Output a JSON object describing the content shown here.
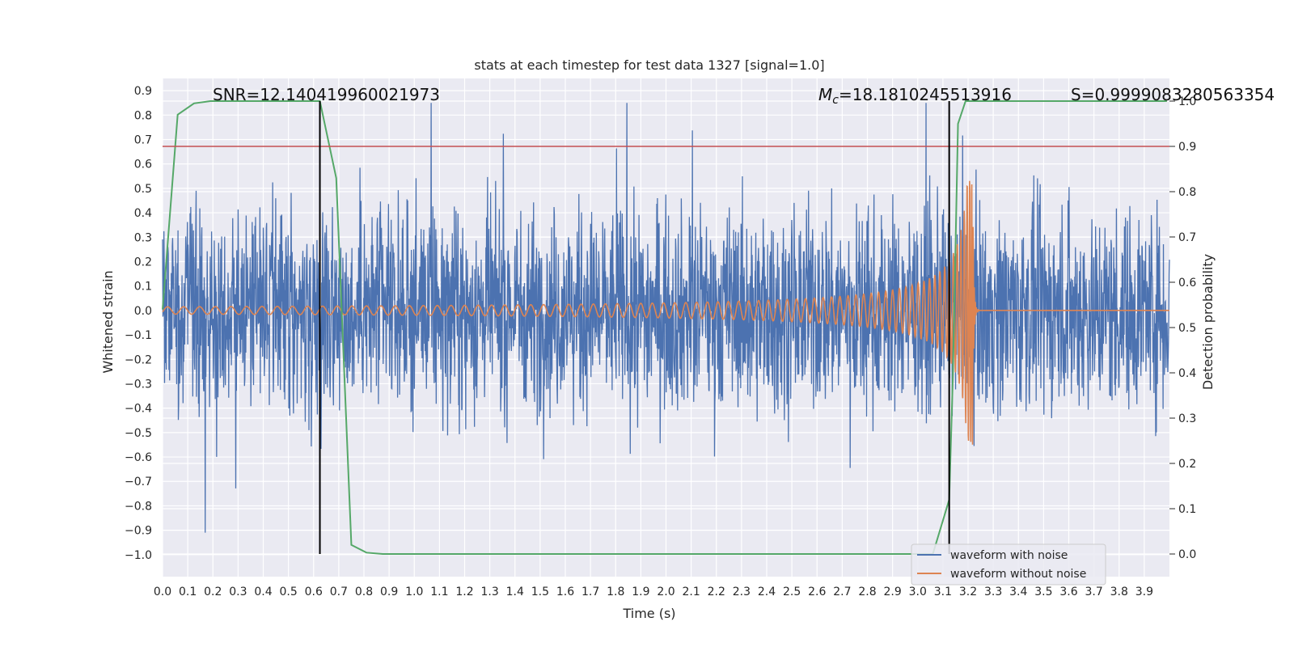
{
  "chart_data": {
    "type": "line",
    "title": "stats at each timestep for test data 1327 [signal=1.0]",
    "xlabel": "Time (s)",
    "ylabel": "Whitened strain",
    "y2label": "Detection probability",
    "xlim": [
      0.0,
      4.0
    ],
    "ylim": [
      -1.09,
      0.95
    ],
    "y2lim": [
      -0.05,
      1.05
    ],
    "x_ticks": [
      0.0,
      0.1,
      0.2,
      0.3,
      0.4,
      0.5,
      0.6,
      0.7,
      0.8,
      0.9,
      1.0,
      1.1,
      1.2,
      1.3,
      1.4,
      1.5,
      1.6,
      1.7,
      1.8,
      1.9,
      2.0,
      2.1,
      2.2,
      2.3,
      2.4,
      2.5,
      2.6,
      2.7,
      2.8,
      2.9,
      3.0,
      3.1,
      3.2,
      3.3,
      3.4,
      3.5,
      3.6,
      3.7,
      3.8,
      3.9
    ],
    "x_tick_labels": [
      "0.0",
      "0.1",
      "0.2",
      "0.3",
      "0.4",
      "0.5",
      "0.6",
      "0.7",
      "0.8",
      "0.9",
      "1.0",
      "1.1",
      "1.2",
      "1.3",
      "1.4",
      "1.5",
      "1.6",
      "1.7",
      "1.8",
      "1.9",
      "2.0",
      "2.1",
      "2.2",
      "2.3",
      "2.4",
      "2.5",
      "2.6",
      "2.7",
      "2.8",
      "2.9",
      "3.0",
      "3.1",
      "3.2",
      "3.3",
      "3.4",
      "3.5",
      "3.6",
      "3.7",
      "3.8",
      "3.9"
    ],
    "y_ticks": [
      0.9,
      0.8,
      0.7,
      0.6,
      0.5,
      0.4,
      0.3,
      0.2,
      0.1,
      0.0,
      -0.1,
      -0.2,
      -0.3,
      -0.4,
      -0.5,
      -0.6,
      -0.7,
      -0.8,
      -0.9,
      -1.0
    ],
    "y_tick_labels": [
      "0.9",
      "0.8",
      "0.7",
      "0.6",
      "0.5",
      "0.4",
      "0.3",
      "0.2",
      "0.1",
      "0.0",
      "−0.1",
      "−0.2",
      "−0.3",
      "−0.4",
      "−0.5",
      "−0.6",
      "−0.7",
      "−0.8",
      "−0.9",
      "−1.0"
    ],
    "y2_ticks": [
      1.0,
      0.9,
      0.8,
      0.7,
      0.6,
      0.5,
      0.4,
      0.3,
      0.2,
      0.1,
      0.0
    ],
    "y2_tick_labels": [
      "1.0",
      "0.9",
      "0.8",
      "0.7",
      "0.6",
      "0.5",
      "0.4",
      "0.3",
      "0.2",
      "0.1",
      "0.0"
    ],
    "grid": true,
    "annotations": {
      "snr": "SNR=12.140419960021973",
      "mc_symbol": "M",
      "mc_sub": "c",
      "mc_value": "=18.1810245513916",
      "s": "S=0.9999083280563354"
    },
    "threshold_y2": 0.9,
    "vlines_x": [
      0.625,
      3.125
    ],
    "series": [
      {
        "name": "waveform with noise",
        "color": "#4c72b0",
        "description": "whitened strain noise, approx amplitude ±0.4 with spikes to ±0.85",
        "amplitude_std": 0.2,
        "seed": 1327
      },
      {
        "name": "waveform without noise",
        "color": "#dd8452",
        "description": "chirp signal merging near t=3.22 s",
        "merger_time": 3.22,
        "start_amplitude": 0.015,
        "peak_amplitude": 0.55
      },
      {
        "name": "detection probability",
        "color": "#55a868",
        "axis": "y2",
        "x": [
          0.0,
          0.06,
          0.125,
          0.19,
          0.25,
          0.31,
          0.375,
          0.44,
          0.5,
          0.56,
          0.625,
          0.69,
          0.75,
          0.81,
          0.875,
          0.94,
          1.0,
          1.5,
          2.0,
          2.5,
          2.75,
          3.0,
          3.06,
          3.125,
          3.14,
          3.16,
          3.19,
          3.25,
          3.5,
          3.75,
          3.99
        ],
        "y": [
          0.54,
          0.97,
          0.995,
          1.0,
          1.0,
          1.0,
          1.0,
          1.0,
          1.0,
          1.0,
          1.0,
          0.83,
          0.02,
          0.003,
          0.0,
          0.0,
          0.0,
          0.0,
          0.0,
          0.0,
          0.0,
          0.0,
          0.0,
          0.12,
          0.4,
          0.95,
          1.0,
          1.0,
          1.0,
          1.0,
          1.0
        ]
      }
    ],
    "legend": {
      "position": "lower-right",
      "entries": [
        {
          "label": "waveform with noise",
          "color": "#4c72b0"
        },
        {
          "label": "waveform without noise",
          "color": "#dd8452"
        }
      ]
    },
    "colors": {
      "plot_bg": "#eaeaf2",
      "grid": "#ffffff",
      "threshold": "#c44e52",
      "vline": "#000000"
    }
  }
}
